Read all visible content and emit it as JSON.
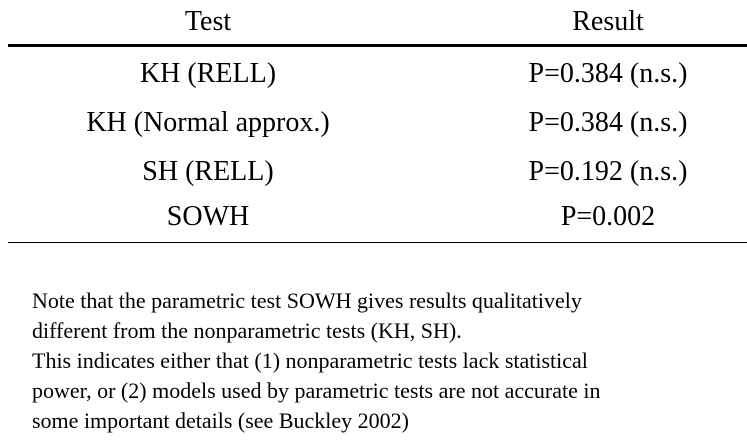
{
  "table": {
    "headers": {
      "test": "Test",
      "result": "Result"
    },
    "rows": [
      {
        "test": "KH (RELL)",
        "result": "P=0.384 (n.s.)"
      },
      {
        "test": "KH (Normal approx.)",
        "result": "P=0.384 (n.s.)"
      },
      {
        "test": "SH (RELL)",
        "result": "P=0.192 (n.s.)"
      },
      {
        "test": "SOWH",
        "result": "P=0.002"
      }
    ]
  },
  "note": {
    "line1": "Note that the parametric test SOWH gives results qualitatively",
    "line2": "different from the nonparametric tests (KH, SH).",
    "line3": "This indicates either that (1) nonparametric tests lack statistical",
    "line4": "power, or (2) models used by parametric tests are not accurate in",
    "line5": "some important details (see Buckley 2002)"
  }
}
